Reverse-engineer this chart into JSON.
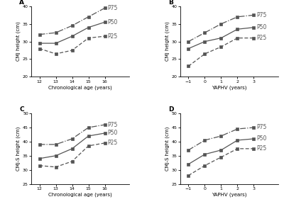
{
  "panel_A": {
    "title": "A",
    "xlabel": "Chronological age (years)",
    "ylabel": "CMJ height (cm)",
    "x": [
      12,
      13,
      14,
      15,
      16
    ],
    "P75": [
      32.0,
      32.5,
      34.5,
      37.0,
      39.5
    ],
    "P50": [
      29.5,
      29.5,
      31.5,
      34.0,
      35.5
    ],
    "P25": [
      28.0,
      26.5,
      27.5,
      31.0,
      31.5
    ],
    "ylim": [
      20,
      40
    ],
    "yticks": [
      20,
      25,
      30,
      35,
      40
    ],
    "xticks": [
      12,
      13,
      14,
      15,
      16
    ],
    "xlim": [
      11.5,
      17.5
    ]
  },
  "panel_B": {
    "title": "B",
    "xlabel": "YAPHV (years)",
    "ylabel": "CMJ height (cm)",
    "x": [
      -1,
      0,
      1,
      2,
      3
    ],
    "P75": [
      30.0,
      32.5,
      35.0,
      37.0,
      37.5
    ],
    "P50": [
      28.0,
      30.0,
      31.0,
      33.5,
      34.0
    ],
    "P25": [
      23.0,
      26.5,
      28.5,
      31.0,
      31.0
    ],
    "ylim": [
      20,
      40
    ],
    "yticks": [
      20,
      25,
      30,
      35,
      40
    ],
    "xticks": [
      -1,
      0,
      1,
      2,
      3
    ],
    "xlim": [
      -1.5,
      4.5
    ]
  },
  "panel_C": {
    "title": "C",
    "xlabel": "Chronological age (years)",
    "ylabel": "CMJ-S height (cm)",
    "x": [
      12,
      13,
      14,
      15,
      16
    ],
    "P75": [
      39.0,
      39.0,
      41.0,
      45.0,
      46.0
    ],
    "P50": [
      34.0,
      35.0,
      37.5,
      42.0,
      43.0
    ],
    "P25": [
      31.5,
      31.0,
      33.0,
      38.5,
      39.5
    ],
    "ylim": [
      25,
      50
    ],
    "yticks": [
      25,
      30,
      35,
      40,
      45,
      50
    ],
    "xticks": [
      12,
      13,
      14,
      15,
      16
    ],
    "xlim": [
      11.5,
      17.5
    ]
  },
  "panel_D": {
    "title": "D",
    "xlabel": "YAPHV (years)",
    "ylabel": "CMJ-S height (cm)",
    "x": [
      -1,
      0,
      1,
      2,
      3
    ],
    "P75": [
      37.0,
      40.5,
      42.0,
      44.5,
      45.0
    ],
    "P50": [
      32.0,
      35.5,
      37.0,
      40.5,
      41.0
    ],
    "P25": [
      28.0,
      31.5,
      34.5,
      37.5,
      37.5
    ],
    "ylim": [
      25,
      50
    ],
    "yticks": [
      25,
      30,
      35,
      40,
      45,
      50
    ],
    "xticks": [
      -1,
      0,
      1,
      2,
      3
    ],
    "xlim": [
      -1.5,
      4.5
    ]
  },
  "line_color": "#555555",
  "marker": "s",
  "markersize": 2.8,
  "linewidth": 0.9,
  "label_fontsize": 5.5,
  "axis_fontsize": 5.0,
  "tick_fontsize": 4.5,
  "title_fontsize": 6.5
}
